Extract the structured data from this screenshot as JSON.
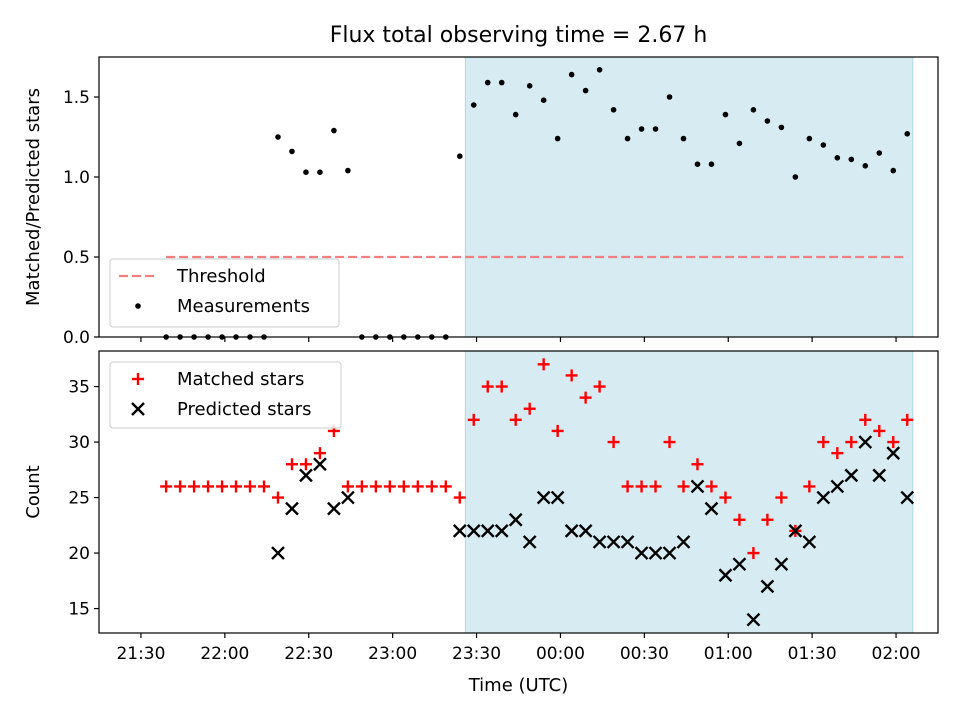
{
  "title": "Flux total observing time = 2.67 h",
  "colors": {
    "threshold": "#f08080",
    "span": "#add8e6",
    "measurement": "#000000",
    "matched": "#ff0000",
    "predicted": "#000000"
  },
  "chart_data": [
    {
      "type": "scatter",
      "panel": "top",
      "ylabel": "Matched/Predicted stars",
      "ylim": [
        0,
        1.75
      ],
      "yticks": [
        "0.0",
        "0.5",
        "1.0",
        "1.5"
      ],
      "threshold": {
        "label": "Threshold",
        "value": 0.5,
        "style": "dashed"
      },
      "shaded_span": {
        "start": "23:26",
        "end": "02:06"
      },
      "legend": {
        "position": "lower-left",
        "entries": [
          "Threshold",
          "Measurements"
        ]
      },
      "series": [
        {
          "name": "Measurements",
          "marker": "dot",
          "points": [
            [
              "21:39",
              0
            ],
            [
              "21:44",
              0
            ],
            [
              "21:49",
              0
            ],
            [
              "21:54",
              0
            ],
            [
              "21:59",
              0
            ],
            [
              "22:04",
              0
            ],
            [
              "22:09",
              0
            ],
            [
              "22:14",
              0
            ],
            [
              "22:19",
              1.25
            ],
            [
              "22:24",
              1.16
            ],
            [
              "22:29",
              1.03
            ],
            [
              "22:34",
              1.03
            ],
            [
              "22:39",
              1.29
            ],
            [
              "22:44",
              1.04
            ],
            [
              "22:49",
              0
            ],
            [
              "22:54",
              0
            ],
            [
              "22:59",
              0
            ],
            [
              "23:04",
              0
            ],
            [
              "23:09",
              0
            ],
            [
              "23:14",
              0
            ],
            [
              "23:19",
              0
            ],
            [
              "23:24",
              1.13
            ],
            [
              "23:29",
              1.45
            ],
            [
              "23:34",
              1.59
            ],
            [
              "23:39",
              1.59
            ],
            [
              "23:44",
              1.39
            ],
            [
              "23:49",
              1.57
            ],
            [
              "23:54",
              1.48
            ],
            [
              "23:59",
              1.24
            ],
            [
              "00:04",
              1.64
            ],
            [
              "00:09",
              1.54
            ],
            [
              "00:14",
              1.67
            ],
            [
              "00:19",
              1.42
            ],
            [
              "00:24",
              1.24
            ],
            [
              "00:29",
              1.3
            ],
            [
              "00:34",
              1.3
            ],
            [
              "00:39",
              1.5
            ],
            [
              "00:44",
              1.24
            ],
            [
              "00:49",
              1.08
            ],
            [
              "00:54",
              1.08
            ],
            [
              "00:59",
              1.39
            ],
            [
              "01:04",
              1.21
            ],
            [
              "01:09",
              1.42
            ],
            [
              "01:14",
              1.35
            ],
            [
              "01:19",
              1.31
            ],
            [
              "01:24",
              1.0
            ],
            [
              "01:29",
              1.24
            ],
            [
              "01:34",
              1.2
            ],
            [
              "01:39",
              1.12
            ],
            [
              "01:44",
              1.11
            ],
            [
              "01:49",
              1.07
            ],
            [
              "01:54",
              1.15
            ],
            [
              "01:59",
              1.04
            ],
            [
              "02:04",
              1.27
            ]
          ]
        }
      ]
    },
    {
      "type": "scatter",
      "panel": "bottom",
      "xlabel": "Time (UTC)",
      "ylabel": "Count",
      "ylim": [
        12.8,
        38.2
      ],
      "yticks": [
        "15",
        "20",
        "25",
        "30",
        "35"
      ],
      "xticks": [
        "21:30",
        "22:00",
        "22:30",
        "23:00",
        "23:30",
        "00:00",
        "00:30",
        "01:00",
        "01:30",
        "02:00"
      ],
      "shaded_span": {
        "start": "23:26",
        "end": "02:06"
      },
      "legend": {
        "position": "top-left",
        "entries": [
          "Matched stars",
          "Predicted stars"
        ]
      },
      "series": [
        {
          "name": "Matched stars",
          "marker": "plus",
          "points": [
            [
              "21:39",
              26
            ],
            [
              "21:44",
              26
            ],
            [
              "21:49",
              26
            ],
            [
              "21:54",
              26
            ],
            [
              "21:59",
              26
            ],
            [
              "22:04",
              26
            ],
            [
              "22:09",
              26
            ],
            [
              "22:14",
              26
            ],
            [
              "22:19",
              25
            ],
            [
              "22:24",
              28
            ],
            [
              "22:29",
              28
            ],
            [
              "22:34",
              29
            ],
            [
              "22:39",
              31
            ],
            [
              "22:44",
              26
            ],
            [
              "22:49",
              26
            ],
            [
              "22:54",
              26
            ],
            [
              "22:59",
              26
            ],
            [
              "23:04",
              26
            ],
            [
              "23:09",
              26
            ],
            [
              "23:14",
              26
            ],
            [
              "23:19",
              26
            ],
            [
              "23:24",
              25
            ],
            [
              "23:29",
              32
            ],
            [
              "23:34",
              35
            ],
            [
              "23:39",
              35
            ],
            [
              "23:44",
              32
            ],
            [
              "23:49",
              33
            ],
            [
              "23:54",
              37
            ],
            [
              "23:59",
              31
            ],
            [
              "00:04",
              36
            ],
            [
              "00:09",
              34
            ],
            [
              "00:14",
              35
            ],
            [
              "00:19",
              30
            ],
            [
              "00:24",
              26
            ],
            [
              "00:29",
              26
            ],
            [
              "00:34",
              26
            ],
            [
              "00:39",
              30
            ],
            [
              "00:44",
              26
            ],
            [
              "00:49",
              28
            ],
            [
              "00:54",
              26
            ],
            [
              "00:59",
              25
            ],
            [
              "01:04",
              23
            ],
            [
              "01:09",
              20
            ],
            [
              "01:14",
              23
            ],
            [
              "01:19",
              25
            ],
            [
              "01:24",
              22
            ],
            [
              "01:29",
              26
            ],
            [
              "01:34",
              30
            ],
            [
              "01:39",
              29
            ],
            [
              "01:44",
              30
            ],
            [
              "01:49",
              32
            ],
            [
              "01:54",
              31
            ],
            [
              "01:59",
              30
            ],
            [
              "02:04",
              32
            ]
          ]
        },
        {
          "name": "Predicted stars",
          "marker": "x",
          "points": [
            [
              "22:19",
              20
            ],
            [
              "22:24",
              24
            ],
            [
              "22:29",
              27
            ],
            [
              "22:34",
              28
            ],
            [
              "22:39",
              24
            ],
            [
              "22:44",
              25
            ],
            [
              "23:24",
              22
            ],
            [
              "23:29",
              22
            ],
            [
              "23:34",
              22
            ],
            [
              "23:39",
              22
            ],
            [
              "23:44",
              23
            ],
            [
              "23:49",
              21
            ],
            [
              "23:54",
              25
            ],
            [
              "23:59",
              25
            ],
            [
              "00:04",
              22
            ],
            [
              "00:09",
              22
            ],
            [
              "00:14",
              21
            ],
            [
              "00:19",
              21
            ],
            [
              "00:24",
              21
            ],
            [
              "00:29",
              20
            ],
            [
              "00:34",
              20
            ],
            [
              "00:39",
              20
            ],
            [
              "00:44",
              21
            ],
            [
              "00:49",
              26
            ],
            [
              "00:54",
              24
            ],
            [
              "00:59",
              18
            ],
            [
              "01:04",
              19
            ],
            [
              "01:09",
              14
            ],
            [
              "01:14",
              17
            ],
            [
              "01:19",
              19
            ],
            [
              "01:24",
              22
            ],
            [
              "01:29",
              21
            ],
            [
              "01:34",
              25
            ],
            [
              "01:39",
              26
            ],
            [
              "01:44",
              27
            ],
            [
              "01:49",
              30
            ],
            [
              "01:54",
              27
            ],
            [
              "01:59",
              29
            ],
            [
              "02:04",
              25
            ]
          ]
        }
      ]
    }
  ]
}
